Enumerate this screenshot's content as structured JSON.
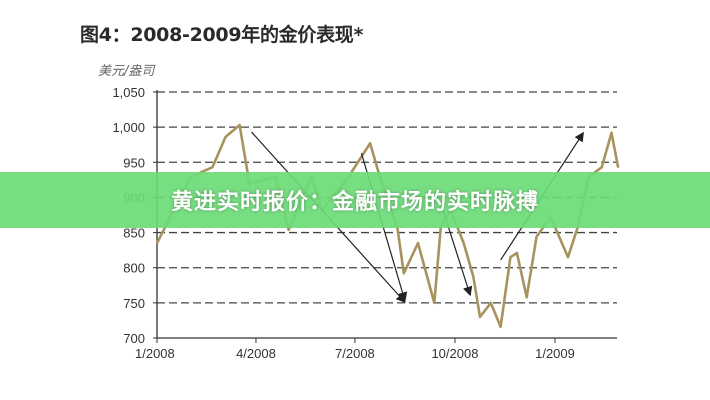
{
  "banner": {
    "text": "黄进实时报价：金融市场的实时脉搏",
    "color": "#6cdc78"
  },
  "chart_data": {
    "type": "line",
    "title": "图4：2008-2009年的金价表现*",
    "ylabel": "美元/盎司",
    "xlabel": "",
    "ylim": [
      700,
      1050
    ],
    "xlim": [
      "2008-01-01",
      "2009-03-01"
    ],
    "grid": "horizontal dashed",
    "y_ticks": [
      "700",
      "750",
      "800",
      "850",
      "900",
      "950",
      "1,000",
      "1,050"
    ],
    "x_ticks": [
      {
        "label": "1/2008",
        "date": "2008-01-01"
      },
      {
        "label": "4/2008",
        "date": "2008-04-01"
      },
      {
        "label": "7/2008",
        "date": "2008-07-01"
      },
      {
        "label": "10/2008",
        "date": "2008-10-01"
      },
      {
        "label": "1/2009",
        "date": "2009-01-01"
      }
    ],
    "line_color": "#a8935f",
    "series": [
      {
        "points": [
          [
            "2008-01-01",
            835
          ],
          [
            "2008-02-01",
            929
          ],
          [
            "2008-02-21",
            943
          ],
          [
            "2008-03-04",
            986
          ],
          [
            "2008-03-17",
            1003
          ],
          [
            "2008-03-26",
            920
          ],
          [
            "2008-04-19",
            929
          ],
          [
            "2008-05-01",
            854
          ],
          [
            "2008-05-22",
            929
          ],
          [
            "2008-06-01",
            882
          ],
          [
            "2008-06-25",
            929
          ],
          [
            "2008-07-15",
            977
          ],
          [
            "2008-07-24",
            929
          ],
          [
            "2008-08-09",
            858
          ],
          [
            "2008-08-15",
            792
          ],
          [
            "2008-08-28",
            835
          ],
          [
            "2008-09-12",
            750
          ],
          [
            "2008-09-18",
            858
          ],
          [
            "2008-09-27",
            882
          ],
          [
            "2008-10-09",
            835
          ],
          [
            "2008-10-18",
            787
          ],
          [
            "2008-10-24",
            730
          ],
          [
            "2008-11-03",
            750
          ],
          [
            "2008-11-12",
            716
          ],
          [
            "2008-11-21",
            815
          ],
          [
            "2008-11-27",
            821
          ],
          [
            "2008-12-06",
            758
          ],
          [
            "2008-12-15",
            844
          ],
          [
            "2008-12-28",
            872
          ],
          [
            "2009-01-13",
            815
          ],
          [
            "2009-01-22",
            858
          ],
          [
            "2009-02-01",
            929
          ],
          [
            "2009-02-13",
            943
          ],
          [
            "2009-02-22",
            992
          ],
          [
            "2009-02-28",
            943
          ]
        ]
      }
    ],
    "annotations": [
      {
        "type": "arrow",
        "from": [
          "2008-03-28",
          993
        ],
        "to": [
          "2008-08-16",
          751
        ]
      },
      {
        "type": "arrow",
        "from": [
          "2008-07-07",
          963
        ],
        "to": [
          "2008-08-16",
          753
        ]
      },
      {
        "type": "arrow",
        "from": [
          "2008-09-20",
          882
        ],
        "to": [
          "2008-10-15",
          761
        ]
      },
      {
        "type": "arrow",
        "from": [
          "2008-11-12",
          811
        ],
        "to": [
          "2009-01-27",
          992
        ]
      }
    ]
  }
}
